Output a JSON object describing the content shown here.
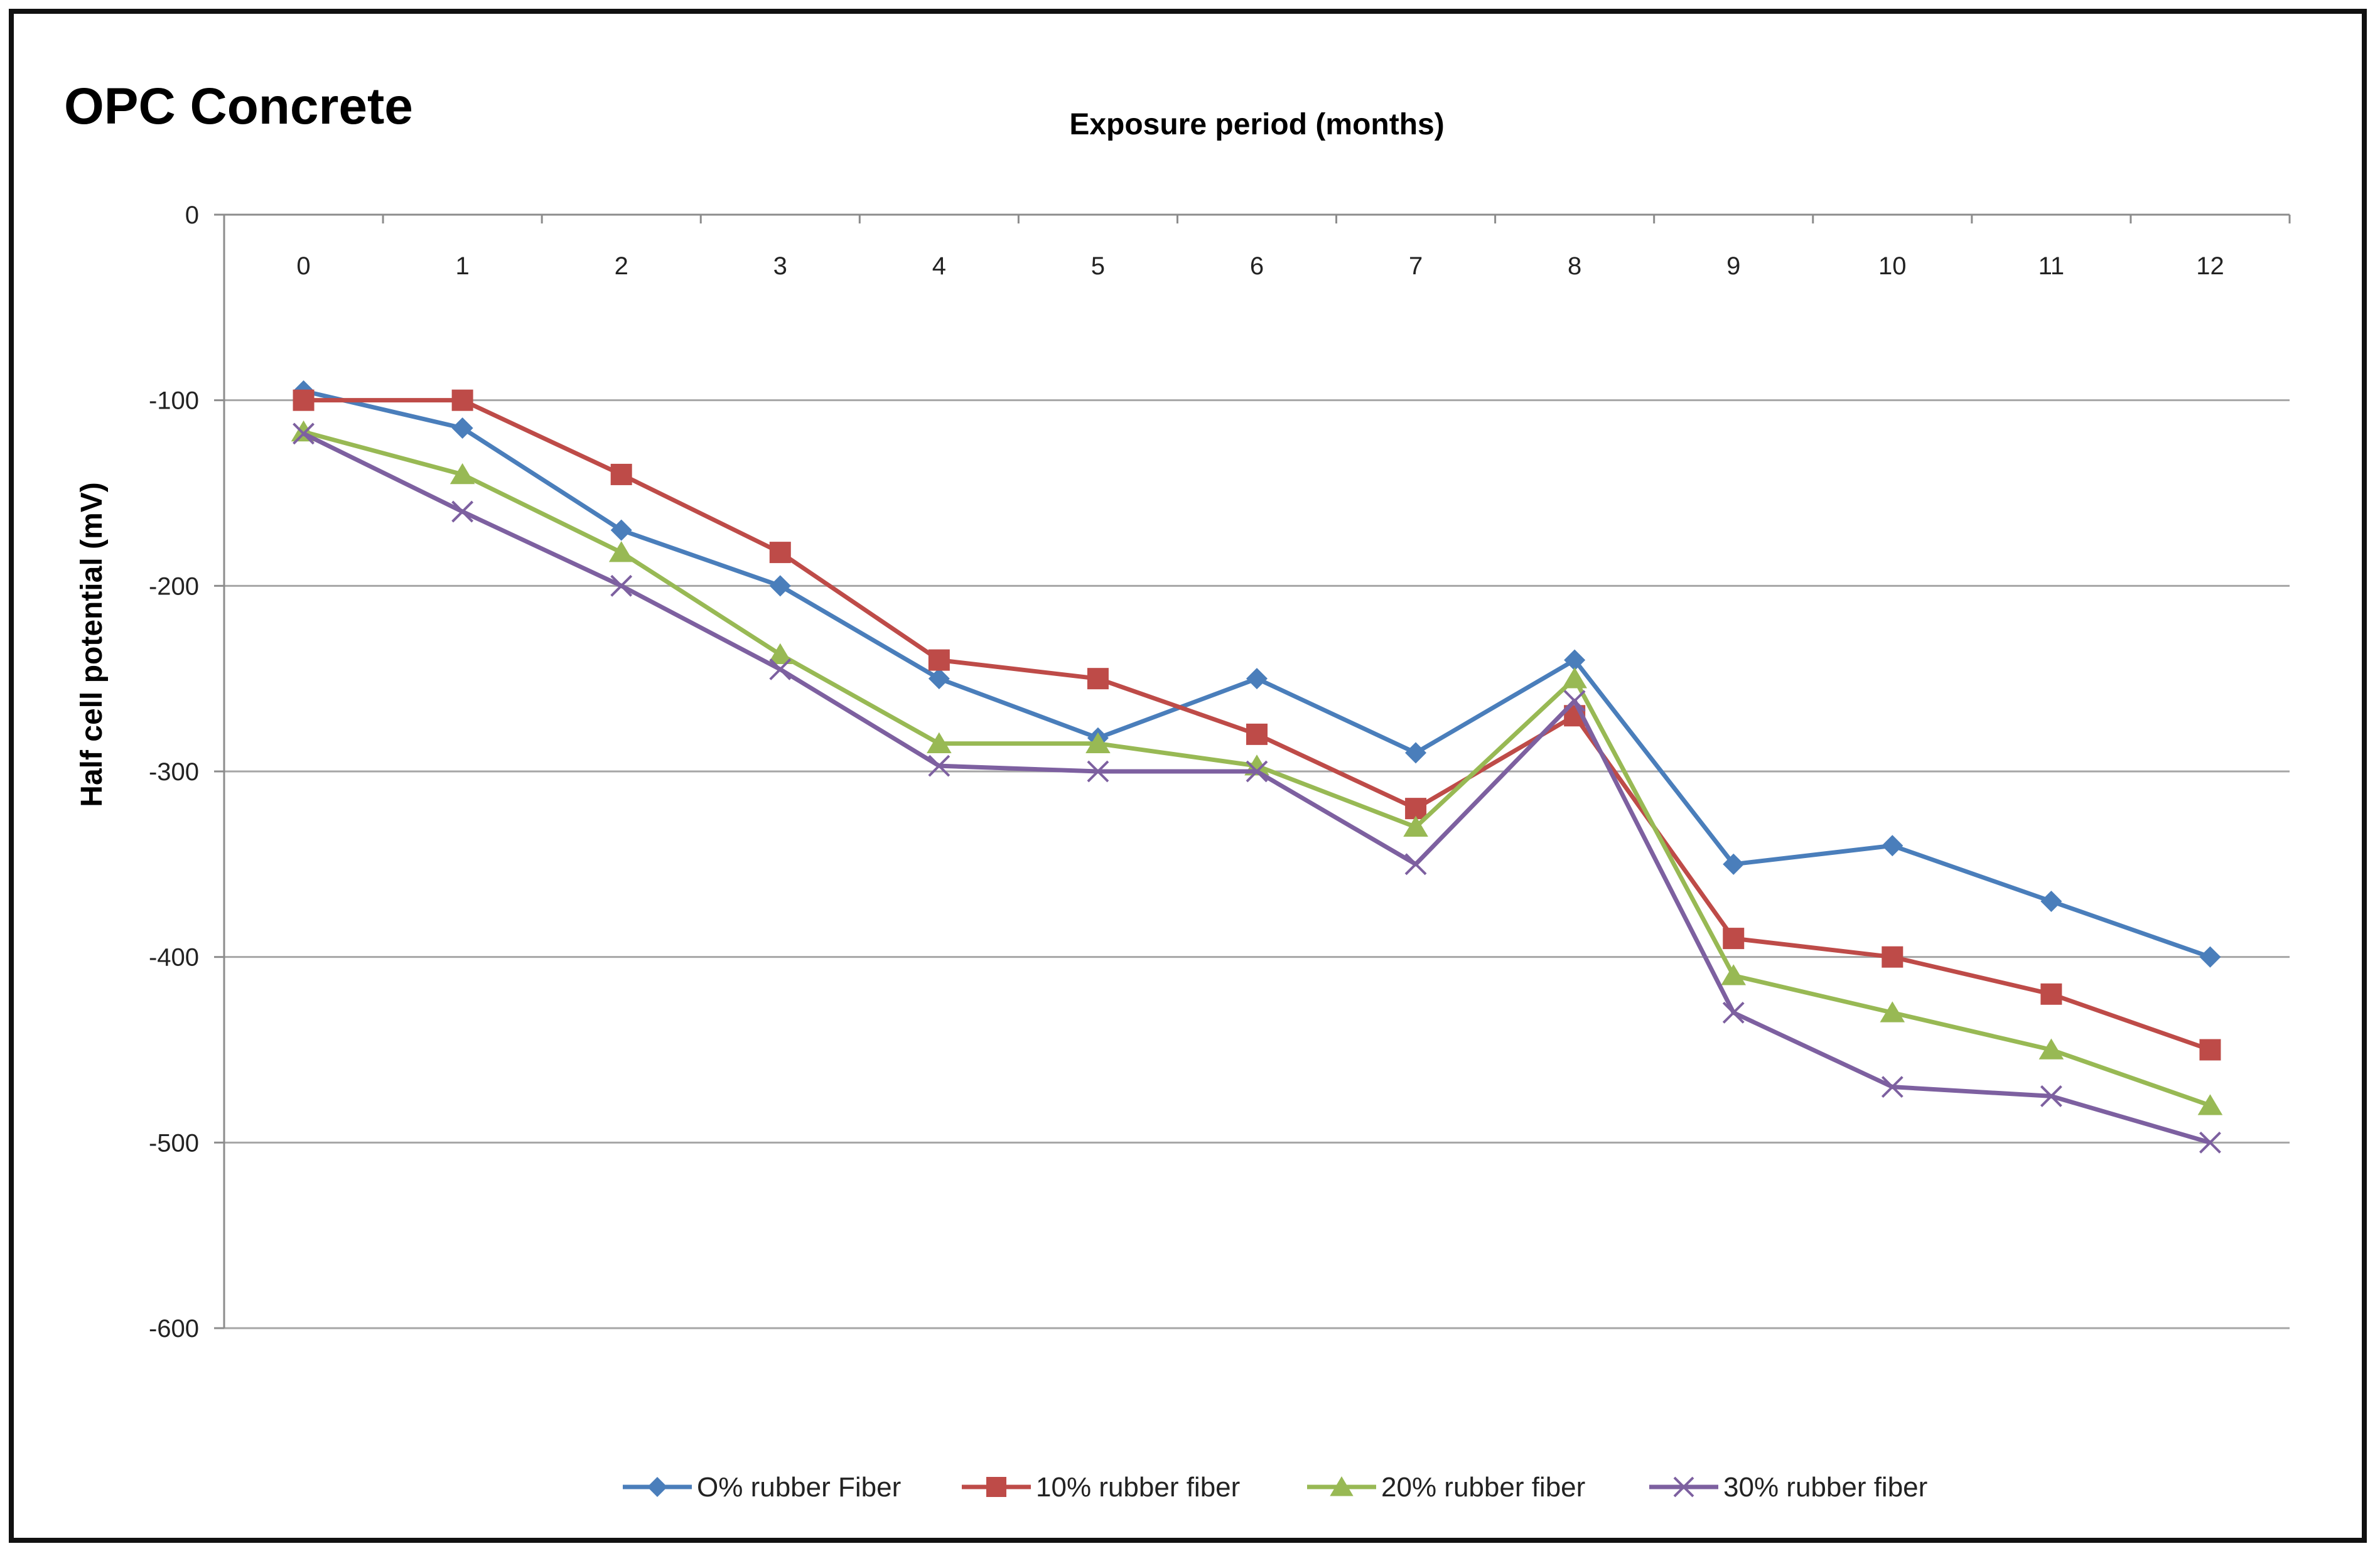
{
  "chart_data": {
    "type": "line",
    "title": "OPC Concrete",
    "xlabel": "Exposure period (months)",
    "ylabel": "Half cell potential (mV)",
    "x": [
      0,
      1,
      2,
      3,
      4,
      5,
      6,
      7,
      8,
      9,
      10,
      11,
      12
    ],
    "x_tick_labels": [
      "0",
      "1",
      "2",
      "3",
      "4",
      "5",
      "6",
      "7",
      "8",
      "9",
      "10",
      "11",
      "12"
    ],
    "ylim": [
      -600,
      0
    ],
    "y_ticks": [
      0,
      -100,
      -200,
      -300,
      -400,
      -500,
      -600
    ],
    "y_tick_labels": [
      "0",
      "-100",
      "-200",
      "-300",
      "-400",
      "-500",
      "-600"
    ],
    "x_axis_position": "top",
    "grid": true,
    "legend_position": "bottom",
    "series": [
      {
        "name": "O% rubber Fiber",
        "color": "#4a7ebb",
        "marker": "diamond",
        "values": [
          -95,
          -115,
          -170,
          -200,
          -250,
          -282,
          -250,
          -290,
          -240,
          -350,
          -340,
          -370,
          -400
        ]
      },
      {
        "name": "10% rubber fiber",
        "color": "#be4b48",
        "marker": "square",
        "values": [
          -100,
          -100,
          -140,
          -182,
          -240,
          -250,
          -280,
          -320,
          -270,
          -390,
          -400,
          -420,
          -450
        ]
      },
      {
        "name": "20% rubber fiber",
        "color": "#98b954",
        "marker": "triangle",
        "values": [
          -117,
          -140,
          -182,
          -237,
          -285,
          -285,
          -297,
          -330,
          -250,
          -410,
          -430,
          -450,
          -480
        ]
      },
      {
        "name": "30% rubber fiber",
        "color": "#7d60a0",
        "marker": "x",
        "values": [
          -118,
          -160,
          -200,
          -245,
          -297,
          -300,
          -300,
          -350,
          -262,
          -430,
          -470,
          -475,
          -500
        ]
      }
    ]
  }
}
